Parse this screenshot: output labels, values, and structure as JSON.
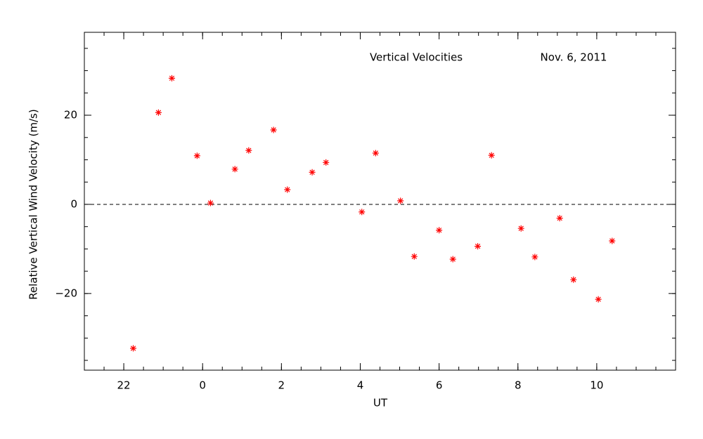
{
  "chart_data": {
    "type": "scatter",
    "annotations": [
      "Vertical Velocities",
      "Nov. 6, 2011"
    ],
    "x_label": "UT",
    "y_label": "Relative Vertical Wind Velocity (m/s)",
    "series": [
      {
        "color": "#ff0000",
        "marker": "asterisk",
        "x": [
          -1.76,
          -1.12,
          -0.78,
          -0.14,
          0.2,
          0.82,
          1.17,
          1.8,
          2.15,
          2.78,
          3.13,
          4.04,
          4.39,
          5.02,
          5.37,
          6.0,
          6.35,
          6.98,
          7.33,
          8.08,
          8.43,
          9.06,
          9.41,
          10.04,
          10.39
        ],
        "values": [
          -32.3,
          20.6,
          28.3,
          10.9,
          0.3,
          7.9,
          12.1,
          16.7,
          3.3,
          7.2,
          9.4,
          -1.7,
          11.5,
          0.8,
          -11.7,
          -5.8,
          -12.3,
          -9.4,
          11.0,
          -5.4,
          -11.8,
          -3.1,
          -16.9,
          -21.3,
          -8.2
        ]
      }
    ],
    "xlim": [
      -3,
      12
    ],
    "xticks": [
      {
        "value": -2,
        "label": "22"
      },
      0,
      2,
      4,
      6,
      8,
      10
    ],
    "ylim": [
      -37.2,
      38.6
    ],
    "yticks": [
      {
        "value": -20,
        "label": "−20"
      },
      0,
      20
    ],
    "reference_line": 0
  }
}
